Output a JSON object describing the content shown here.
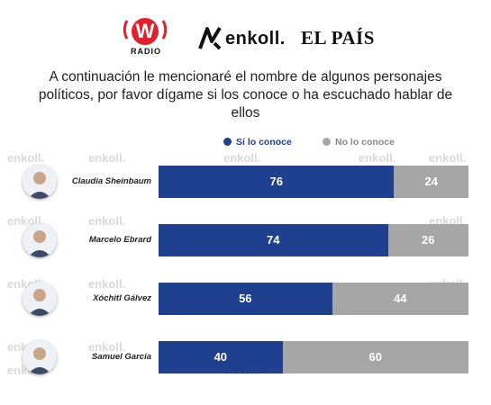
{
  "logos": {
    "wradio_mark": "W",
    "wradio_text": "RADIO",
    "enkoll": "enkoll.",
    "elpais": "EL PAÍS"
  },
  "question": "A continuación le mencionaré el nombre de algunos personajes políticos, por favor dígame si los conoce o ha escuchado hablar de ellos",
  "watermark_text": "enkoll.",
  "colors": {
    "conoce": "#1f3f8f",
    "no_conoce": "#a6a6a6"
  },
  "chart_data": {
    "type": "bar",
    "orientation": "horizontal",
    "stacked": true,
    "categories": [
      "Claudia Sheinbaum",
      "Marcelo Ebrard",
      "Xóchitl Gálvez",
      "Samuel García"
    ],
    "series": [
      {
        "name": "Sí lo conoce",
        "values": [
          76,
          74,
          56,
          40
        ],
        "color": "#1f3f8f"
      },
      {
        "name": "No lo conoce",
        "values": [
          24,
          26,
          44,
          60
        ],
        "color": "#a6a6a6"
      }
    ],
    "xlim": [
      0,
      100
    ],
    "legend_position": "top",
    "grid": false
  },
  "avatars": [
    "portrait-icon",
    "portrait-icon",
    "portrait-icon",
    "portrait-icon"
  ]
}
